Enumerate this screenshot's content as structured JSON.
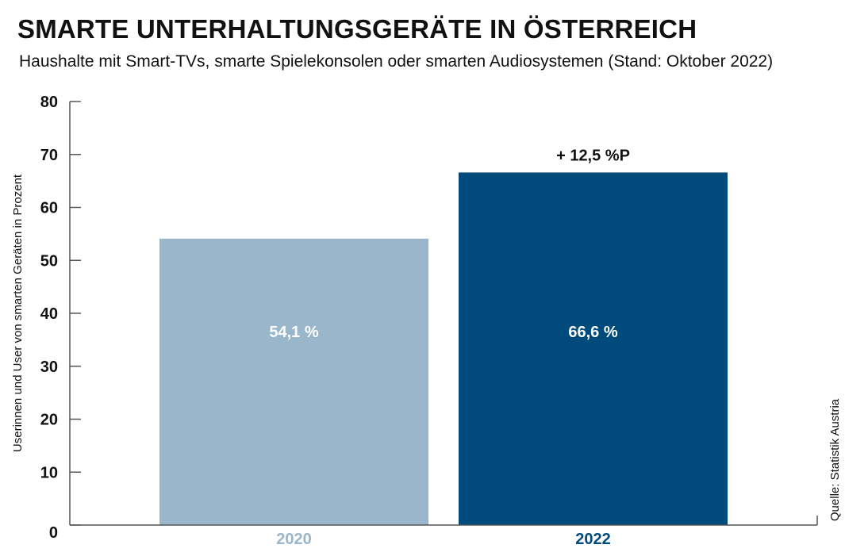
{
  "title": "SMARTE UNTERHALTUNGSGERÄTE IN ÖSTERREICH",
  "subtitle": "Haushalte mit Smart-TVs, smarte Spielekonsolen oder smarten Audiosystemen  (Stand: Oktober 2022)",
  "source": "Quelle: Statistik Austria",
  "chart_data": {
    "type": "bar",
    "categories": [
      "2020",
      "2022"
    ],
    "values": [
      54.1,
      66.6
    ],
    "value_labels": [
      "54,1 %",
      "66,6 %"
    ],
    "bar_colors": [
      "#9ab6cb",
      "#004b7c"
    ],
    "category_label_colors": [
      "#9ab6cb",
      "#004b7c"
    ],
    "annotation": {
      "category": "2022",
      "text": "+ 12,5 %P"
    },
    "ylabel": "Userinnen und User von smarten Geräten in Prozent",
    "xlabel": "",
    "ylim": [
      0,
      80
    ],
    "yticks": [
      0,
      10,
      20,
      30,
      40,
      50,
      60,
      70,
      80
    ],
    "grid": false,
    "legend": "none"
  }
}
